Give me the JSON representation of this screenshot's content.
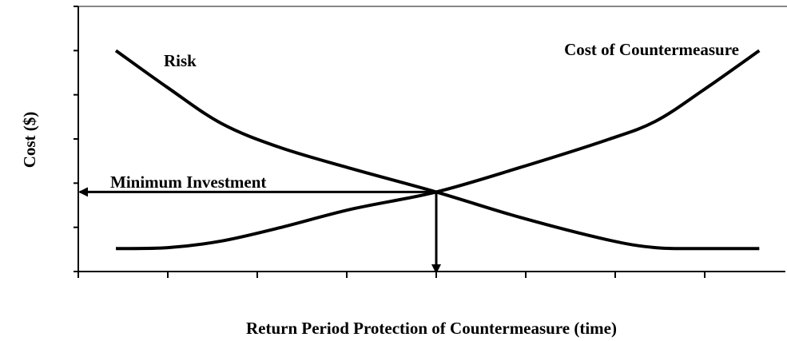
{
  "chart_data": {
    "type": "line",
    "x_label": "Return Period Protection of Countermeasure (time)",
    "y_label": "Cost ($)",
    "x": [
      0.42,
      1,
      1.6,
      2.25,
      3.05,
      4,
      4.93,
      5.91,
      6.45,
      6.98,
      7.61
    ],
    "series": [
      {
        "name": "Risk",
        "color": "#000000",
        "values": [
          5.0,
          4.16,
          3.35,
          2.81,
          2.33,
          1.8,
          1.23,
          0.72,
          0.54,
          0.52,
          0.52
        ]
      },
      {
        "name": "Cost of Countermeasure",
        "color": "#000000",
        "values": [
          0.52,
          0.54,
          0.69,
          0.99,
          1.41,
          1.8,
          2.35,
          2.98,
          3.4,
          4.1,
          5.0
        ]
      }
    ],
    "annotations": [
      "Minimum Investment"
    ],
    "xlim": [
      0,
      7.9
    ],
    "ylim": [
      0,
      6
    ],
    "xticks": [
      0,
      1,
      2,
      3,
      4,
      5,
      6,
      7
    ],
    "yticks": [
      0,
      1,
      2,
      3,
      4,
      5,
      6
    ]
  }
}
